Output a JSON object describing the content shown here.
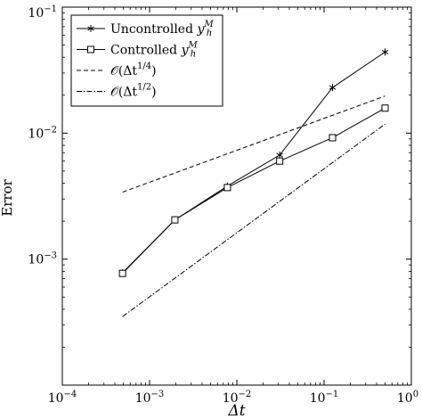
{
  "chart_data": {
    "type": "line",
    "xlabel": "Δt",
    "ylabel": "Error",
    "xscale": "log",
    "yscale": "log",
    "xlim": [
      0.0001,
      1
    ],
    "ylim": [
      0.0001,
      0.1
    ],
    "grid": false,
    "legend_position": "top-left",
    "x_ticks": [
      {
        "value": 0.0001,
        "base": "10",
        "exp": "−4"
      },
      {
        "value": 0.001,
        "base": "10",
        "exp": "−3"
      },
      {
        "value": 0.01,
        "base": "10",
        "exp": "−2"
      },
      {
        "value": 0.1,
        "base": "10",
        "exp": "−1"
      },
      {
        "value": 1,
        "base": "10",
        "exp": "0"
      }
    ],
    "y_ticks": [
      {
        "value": 0.001,
        "base": "10",
        "exp": "−3"
      },
      {
        "value": 0.01,
        "base": "10",
        "exp": "−2"
      },
      {
        "value": 0.1,
        "base": "10",
        "exp": "−1"
      }
    ],
    "series": [
      {
        "name": "Uncontrolled y_h^M",
        "label_main": "Uncontrolled ",
        "label_var": "y",
        "label_sub": "h",
        "label_sup": "M",
        "marker": "asterisk",
        "line": "solid",
        "color": "#000000",
        "x": [
          0.00049,
          0.00195,
          0.0078,
          0.031,
          0.125,
          0.5
        ],
        "y": [
          0.00078,
          0.00205,
          0.0038,
          0.0067,
          0.023,
          0.044
        ]
      },
      {
        "name": "Controlled y_h^M",
        "label_main": "Controlled ",
        "label_var": "y",
        "label_sub": "h",
        "label_sup": "M",
        "marker": "square",
        "line": "solid",
        "color": "#000000",
        "x": [
          0.00049,
          0.00195,
          0.0078,
          0.031,
          0.125,
          0.5
        ],
        "y": [
          0.00077,
          0.00205,
          0.0037,
          0.006,
          0.0092,
          0.0158
        ]
      },
      {
        "name": "O(Δt^{1/4})",
        "label_main": "𝒪(Δt",
        "label_exp": "1/4",
        "label_close": ")",
        "marker": "none",
        "line": "dashed",
        "color": "#000000",
        "x": [
          0.00049,
          0.5
        ],
        "y": [
          0.0034,
          0.0197
        ]
      },
      {
        "name": "O(Δt^{1/2})",
        "label_main": "𝒪(Δt",
        "label_exp": "1/2",
        "label_close": ")",
        "marker": "none",
        "line": "dashdot",
        "color": "#000000",
        "x": [
          0.00049,
          0.5
        ],
        "y": [
          0.00035,
          0.0118
        ]
      }
    ]
  }
}
